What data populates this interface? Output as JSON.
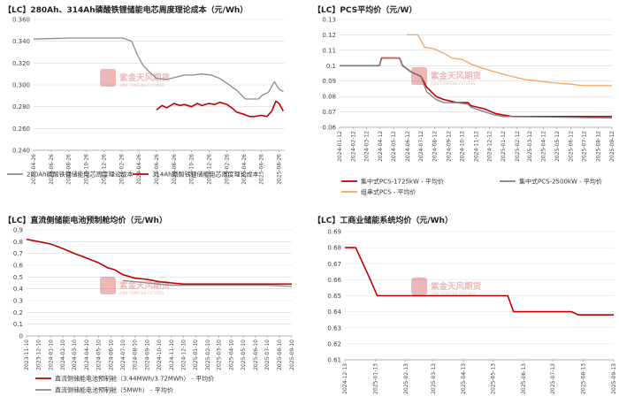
{
  "charts": [
    {
      "id": "cell",
      "title": "【LC】280Ah、314Ah磷酸铁锂储能电芯周度理论成本（元/Wh）",
      "chart_data": {
        "type": "line",
        "ylim": [
          0.24,
          0.36
        ],
        "yticks": [
          "0.240",
          "0.260",
          "0.280",
          "0.300",
          "0.320",
          "0.340",
          "0.360"
        ],
        "x_range": [
          "2023-04-26",
          "2025-09-15"
        ],
        "x_ticks": [
          "2023-04-26",
          "2023-06-26",
          "2023-08-26",
          "2023-10-26",
          "2023-12-26",
          "2024-02-26",
          "2024-04-26",
          "2024-06-26",
          "2024-08-26",
          "2024-10-26",
          "2024-12-26",
          "2025-02-26",
          "2025-04-26",
          "2025-06-26",
          "2025-08-26"
        ],
        "legend_position": "bottom",
        "series": [
          {
            "name": "280Ah磷酸铁锂储能电芯周度理论成本",
            "color": "#8c8c8c",
            "x": [
              "2023-04-26",
              "2023-09-01",
              "2024-01-01",
              "2024-03-01",
              "2024-04-01",
              "2024-04-20",
              "2024-05-10",
              "2024-06-01",
              "2024-06-26",
              "2024-08-01",
              "2024-09-01",
              "2024-10-01",
              "2024-11-01",
              "2024-12-01",
              "2025-01-01",
              "2025-02-01",
              "2025-03-01",
              "2025-04-01",
              "2025-05-01",
              "2025-06-15",
              "2025-07-01",
              "2025-07-20",
              "2025-08-10",
              "2025-08-26",
              "2025-09-10"
            ],
            "y": [
              0.342,
              0.343,
              0.343,
              0.343,
              0.34,
              0.328,
              0.318,
              0.312,
              0.306,
              0.305,
              0.307,
              0.309,
              0.309,
              0.31,
              0.309,
              0.306,
              0.301,
              0.295,
              0.287,
              0.287,
              0.291,
              0.293,
              0.303,
              0.296,
              0.294
            ]
          },
          {
            "name": "314Ah磷酸铁锂储能电芯周度理论成本",
            "color": "#c00000",
            "x": [
              "2024-06-26",
              "2024-07-15",
              "2024-08-01",
              "2024-08-26",
              "2024-09-15",
              "2024-10-01",
              "2024-10-26",
              "2024-11-15",
              "2024-12-01",
              "2024-12-26",
              "2025-01-15",
              "2025-02-01",
              "2025-02-26",
              "2025-03-15",
              "2025-04-01",
              "2025-04-26",
              "2025-05-15",
              "2025-06-01",
              "2025-06-26",
              "2025-07-15",
              "2025-08-01",
              "2025-08-15",
              "2025-08-26",
              "2025-09-10"
            ],
            "y": [
              0.277,
              0.281,
              0.279,
              0.283,
              0.281,
              0.282,
              0.28,
              0.283,
              0.281,
              0.283,
              0.282,
              0.284,
              0.282,
              0.279,
              0.275,
              0.273,
              0.271,
              0.271,
              0.272,
              0.271,
              0.276,
              0.285,
              0.283,
              0.276
            ]
          }
        ]
      }
    },
    {
      "id": "pcs",
      "title": "【LC】PCS平均价（元/W）",
      "chart_data": {
        "type": "line",
        "ylim": [
          0.06,
          0.13
        ],
        "yticks": [
          "0.06",
          "0.07",
          "0.08",
          "0.09",
          "0.1",
          "0.11",
          "0.12",
          "0.13"
        ],
        "x_range": [
          "2024-01-12",
          "2025-09-12"
        ],
        "x_ticks": [
          "2024-01-12",
          "2024-02-12",
          "2024-03-12",
          "2024-04-12",
          "2024-05-12",
          "2024-06-12",
          "2024-07-12",
          "2024-08-12",
          "2024-09-12",
          "2024-10-12",
          "2024-11-12",
          "2024-12-12",
          "2025-01-12",
          "2025-02-12",
          "2025-03-12",
          "2025-04-12",
          "2025-05-12",
          "2025-06-12",
          "2025-07-12",
          "2025-08-12",
          "2025-09-12"
        ],
        "legend_position": "bottom",
        "series": [
          {
            "name": "集中式PCS-1725kW - 平均价",
            "color": "#c00000",
            "x": [
              "2024-01-12",
              "2024-04-10",
              "2024-04-15",
              "2024-05-25",
              "2024-06-01",
              "2024-06-20",
              "2024-07-12",
              "2024-07-25",
              "2024-08-15",
              "2024-09-01",
              "2024-10-01",
              "2024-10-25",
              "2024-11-01",
              "2024-12-01",
              "2024-12-25",
              "2025-01-12",
              "2025-02-01",
              "2025-09-12"
            ],
            "y": [
              0.1,
              0.1,
              0.105,
              0.105,
              0.1,
              0.096,
              0.093,
              0.086,
              0.08,
              0.078,
              0.076,
              0.076,
              0.074,
              0.072,
              0.069,
              0.068,
              0.067,
              0.067
            ]
          },
          {
            "name": "集中式PCS-2500kW - 平均价",
            "color": "#7f7f7f",
            "x": [
              "2024-01-12",
              "2024-04-10",
              "2024-04-15",
              "2024-05-25",
              "2024-06-01",
              "2024-06-20",
              "2024-07-12",
              "2024-07-25",
              "2024-08-15",
              "2024-09-01",
              "2024-10-01",
              "2024-10-25",
              "2024-11-01",
              "2024-12-01",
              "2024-12-25",
              "2025-01-12",
              "2025-02-01",
              "2025-09-12"
            ],
            "y": [
              0.1,
              0.1,
              0.105,
              0.105,
              0.1,
              0.096,
              0.093,
              0.083,
              0.078,
              0.076,
              0.076,
              0.075,
              0.073,
              0.07,
              0.068,
              0.067,
              0.067,
              0.066
            ]
          },
          {
            "name": "组串式PCS - 平均价",
            "color": "#f4a460",
            "x": [
              "2024-06-10",
              "2024-07-05",
              "2024-07-20",
              "2024-08-10",
              "2024-09-01",
              "2024-09-20",
              "2024-10-12",
              "2024-11-01",
              "2024-11-20",
              "2024-12-12",
              "2025-01-05",
              "2025-02-01",
              "2025-03-01",
              "2025-04-01",
              "2025-05-01",
              "2025-06-10",
              "2025-07-12",
              "2025-09-12"
            ],
            "y": [
              0.12,
              0.12,
              0.112,
              0.111,
              0.108,
              0.105,
              0.104,
              0.101,
              0.099,
              0.097,
              0.095,
              0.093,
              0.091,
              0.09,
              0.089,
              0.088,
              0.087,
              0.087
            ]
          }
        ]
      }
    },
    {
      "id": "cabin",
      "title": "【LC】直流侧储能电池预制舱均价（元/Wh）",
      "chart_data": {
        "type": "line",
        "ylim": [
          0,
          0.9
        ],
        "yticks": [
          "0",
          "0.1",
          "0.2",
          "0.3",
          "0.4",
          "0.5",
          "0.6",
          "0.7",
          "0.8",
          "0.9"
        ],
        "x_range": [
          "2023-11-10",
          "2025-09-10"
        ],
        "x_ticks": [
          "2023-11-10",
          "2023-12-10",
          "2024-01-10",
          "2024-02-10",
          "2024-03-10",
          "2024-04-10",
          "2024-05-10",
          "2024-06-10",
          "2024-07-10",
          "2024-08-10",
          "2024-09-10",
          "2024-10-10",
          "2024-11-10",
          "2024-12-10",
          "2025-01-10",
          "2025-02-10",
          "2025-03-10",
          "2025-04-10",
          "2025-05-10",
          "2025-06-10",
          "2025-07-10",
          "2025-08-10",
          "2025-09-10"
        ],
        "legend_position": "bottom",
        "series": [
          {
            "name": "直流侧储能电池预制舱（3.44MWh/3.72MWh） - 平均价",
            "color": "#c00000",
            "x": [
              "2023-11-10",
              "2023-12-10",
              "2024-01-10",
              "2024-02-10",
              "2024-03-10",
              "2024-04-10",
              "2024-05-10",
              "2024-06-01",
              "2024-06-20",
              "2024-07-10",
              "2024-08-10",
              "2024-09-10",
              "2024-10-10",
              "2024-11-10",
              "2024-12-10",
              "2025-01-10",
              "2025-03-10",
              "2025-05-10",
              "2025-07-10",
              "2025-09-10"
            ],
            "y": [
              0.82,
              0.8,
              0.78,
              0.74,
              0.7,
              0.66,
              0.62,
              0.58,
              0.56,
              0.52,
              0.49,
              0.48,
              0.46,
              0.45,
              0.44,
              0.44,
              0.44,
              0.44,
              0.44,
              0.44
            ]
          },
          {
            "name": "直流侧储能电池预制舱（5MWh） - 平均价",
            "color": "#8c8c8c",
            "x": [
              "2024-07-10",
              "2024-08-10",
              "2024-09-10",
              "2024-10-10",
              "2024-11-10",
              "2024-12-10",
              "2025-01-10",
              "2025-03-10",
              "2025-05-10",
              "2025-07-10",
              "2025-09-10"
            ],
            "y": [
              0.47,
              0.46,
              0.45,
              0.44,
              0.43,
              0.43,
              0.43,
              0.43,
              0.43,
              0.43,
              0.42
            ]
          }
        ]
      }
    },
    {
      "id": "ci",
      "title": "【LC】工商业储能系统均价（元/Wh）",
      "chart_data": {
        "type": "line",
        "ylim": [
          0.61,
          0.69
        ],
        "yticks": [
          "0.61",
          "0.62",
          "0.63",
          "0.64",
          "0.65",
          "0.66",
          "0.67",
          "0.68",
          "0.69"
        ],
        "x_range": [
          "2024-12-13",
          "2025-09-13"
        ],
        "x_ticks": [
          "2024-12-13",
          "2025-01-13",
          "2025-02-13",
          "2025-03-13",
          "2025-04-13",
          "2025-05-13",
          "2025-06-13",
          "2025-07-13",
          "2025-08-13",
          "2025-09-13"
        ],
        "legend_position": "none",
        "series": [
          {
            "name": "",
            "color": "#c00000",
            "x": [
              "2024-12-13",
              "2024-12-24",
              "2025-01-08",
              "2025-01-15",
              "2025-02-10",
              "2025-03-13",
              "2025-04-13",
              "2025-05-13",
              "2025-05-28",
              "2025-06-03",
              "2025-07-13",
              "2025-08-01",
              "2025-08-08",
              "2025-09-13"
            ],
            "y": [
              0.68,
              0.68,
              0.66,
              0.65,
              0.65,
              0.65,
              0.65,
              0.65,
              0.65,
              0.64,
              0.64,
              0.64,
              0.638,
              0.638
            ]
          }
        ]
      }
    }
  ],
  "watermark": {
    "text": "紫金天风期货",
    "subtext": "ZIJIN TIANFENG FUTURES",
    "seal": "紫金天风",
    "color": "#c00000"
  }
}
